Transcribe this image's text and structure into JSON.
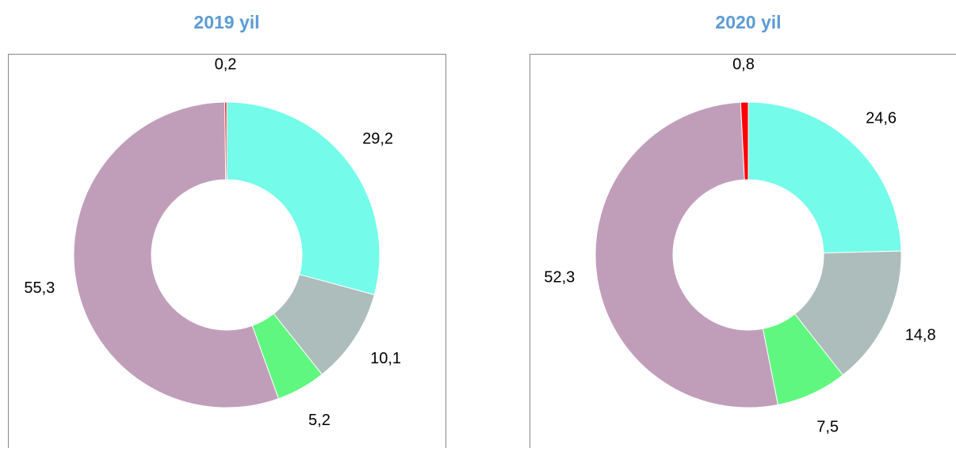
{
  "chart_data": [
    {
      "type": "donut",
      "title": "2019 yil",
      "values": [
        29.2,
        10.1,
        5.2,
        55.3,
        0.2
      ],
      "value_labels": [
        "29,2",
        "10,1",
        "5,2",
        "55,3",
        "0,2"
      ],
      "colors": [
        "#74fbea",
        "#adbdbb",
        "#5ff77f",
        "#c09eba",
        "#ff0000"
      ]
    },
    {
      "type": "donut",
      "title": "2020 yil",
      "values": [
        24.6,
        14.8,
        7.5,
        52.3,
        0.8
      ],
      "value_labels": [
        "24,6",
        "14,8",
        "7,5",
        "52,3",
        "0,8"
      ],
      "colors": [
        "#74fbea",
        "#adbdbb",
        "#5ff77f",
        "#c09eba",
        "#ff0000"
      ]
    }
  ]
}
